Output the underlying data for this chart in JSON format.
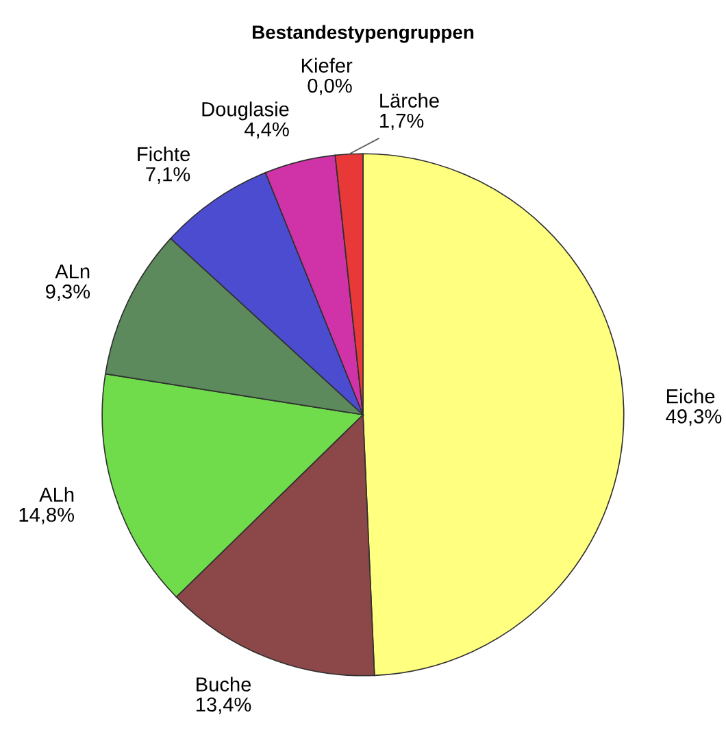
{
  "chart_data": {
    "type": "pie",
    "title": "Bestandestypengruppen",
    "categories": [
      "Eiche",
      "Buche",
      "ALh",
      "ALn",
      "Fichte",
      "Douglasie",
      "Kiefer",
      "Lärche"
    ],
    "values": [
      49.3,
      13.4,
      14.8,
      9.3,
      7.1,
      4.4,
      0.0,
      1.7
    ],
    "value_labels": [
      "49,3%",
      "13,4%",
      "14,8%",
      "9,3%",
      "7,1%",
      "4,4%",
      "0,0%",
      "1,7%"
    ],
    "colors": [
      "#ffff80",
      "#8c4848",
      "#70dc4c",
      "#5c8a5c",
      "#4c4cd0",
      "#d033a8",
      "#1e1e8c",
      "#e83838"
    ]
  }
}
